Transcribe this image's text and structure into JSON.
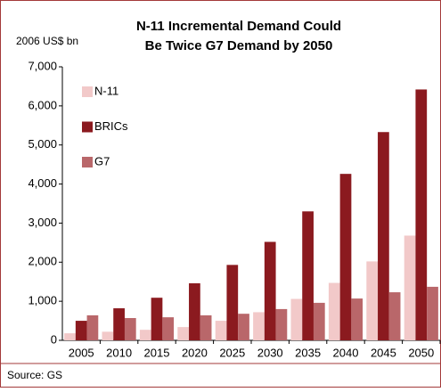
{
  "chart_data": {
    "type": "bar",
    "title": [
      "N-11 Incremental Demand Could",
      "Be Twice G7 Demand by 2050"
    ],
    "y_label": "2006 US$ bn",
    "source": "Source: GS",
    "categories": [
      "2005",
      "2010",
      "2015",
      "2020",
      "2025",
      "2030",
      "2035",
      "2040",
      "2045",
      "2050"
    ],
    "series": [
      {
        "name": "N-11",
        "color": "#f2c9c9",
        "values": [
          180,
          220,
          270,
          340,
          500,
          720,
          1060,
          1470,
          2020,
          2680
        ]
      },
      {
        "name": "BRICs",
        "color": "#8b1a1f",
        "values": [
          500,
          820,
          1090,
          1460,
          1930,
          2520,
          3300,
          4260,
          5330,
          6420
        ]
      },
      {
        "name": "G7",
        "color": "#b9676a",
        "values": [
          640,
          570,
          590,
          640,
          680,
          800,
          960,
          1070,
          1230,
          1370
        ]
      }
    ],
    "ylim": [
      0,
      7000
    ],
    "yticks": [
      0,
      {
        "value": 1000,
        "label": "1,000"
      },
      {
        "value": 2000,
        "label": "2,000"
      },
      {
        "value": 3000,
        "label": "3,000"
      },
      {
        "value": 4000,
        "label": "4,000"
      },
      {
        "value": 5000,
        "label": "5,000"
      },
      {
        "value": 6000,
        "label": "6,000"
      },
      {
        "value": 7000,
        "label": "7,000"
      }
    ],
    "grid": false,
    "legend": "upper left"
  }
}
